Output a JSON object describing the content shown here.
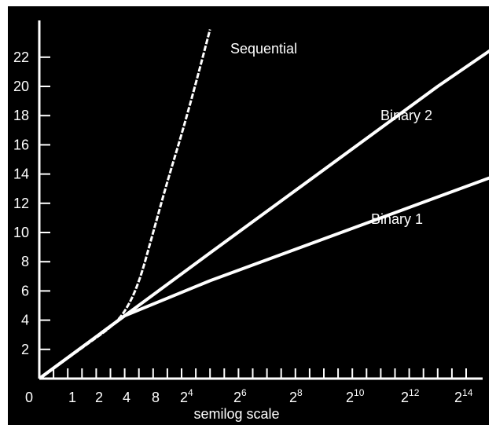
{
  "chart_data": {
    "type": "line",
    "title": "",
    "xlabel": "semilog scale",
    "ylabel": "",
    "x_ticks": [
      {
        "label": "0",
        "exp": null
      },
      {
        "label": "1",
        "exp": null
      },
      {
        "label": "2",
        "exp": null
      },
      {
        "label": "4",
        "exp": null
      },
      {
        "label": "8",
        "exp": null
      },
      {
        "label": "2",
        "exp": "4"
      },
      {
        "label": "2",
        "exp": "6"
      },
      {
        "label": "2",
        "exp": "8"
      },
      {
        "label": "2",
        "exp": "10"
      },
      {
        "label": "2",
        "exp": "12"
      },
      {
        "label": "2",
        "exp": "14"
      }
    ],
    "y_ticks": [
      2,
      4,
      6,
      8,
      10,
      12,
      14,
      16,
      18,
      20,
      22
    ],
    "ylim": [
      0,
      24
    ],
    "series": [
      {
        "name": "Sequential",
        "points": [
          [
            0,
            0
          ],
          [
            1,
            0.7
          ],
          [
            2,
            1.4
          ],
          [
            3,
            2.1
          ],
          [
            4,
            2.8
          ],
          [
            5,
            3.5
          ],
          [
            6,
            4.5
          ],
          [
            7,
            6.5
          ],
          [
            8,
            10.0
          ],
          [
            9,
            13.5
          ],
          [
            10,
            16.7
          ],
          [
            11,
            20.2
          ],
          [
            12,
            23.9
          ]
        ]
      },
      {
        "name": "Binary 2",
        "points": [
          [
            0,
            0
          ],
          [
            6,
            4.3
          ],
          [
            12,
            8.6
          ],
          [
            28,
            20.0
          ],
          [
            34,
            24.0
          ]
        ]
      },
      {
        "name": "Binary 1",
        "points": [
          [
            0,
            0
          ],
          [
            6,
            4.3
          ],
          [
            12,
            6.7
          ],
          [
            36,
            15.3
          ]
        ]
      }
    ],
    "color": "#ffffff",
    "background": "#000000"
  }
}
